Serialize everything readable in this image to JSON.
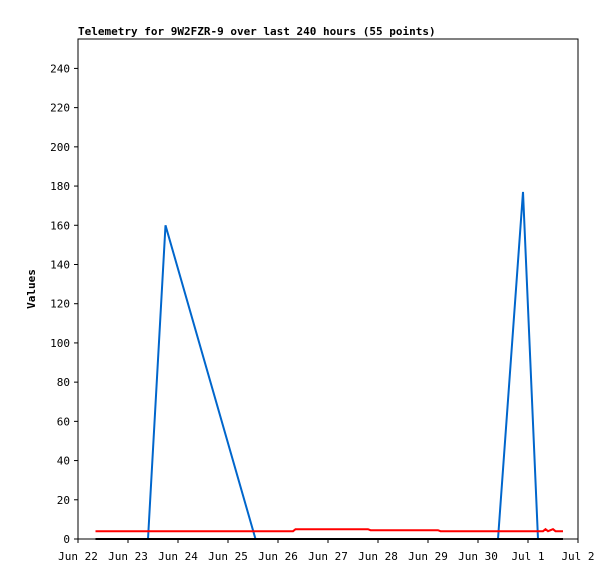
{
  "chart_data": {
    "type": "line",
    "title": "Telemetry for 9W2FZR-9 over last 240 hours (55 points)",
    "xlabel": "",
    "ylabel": "Values",
    "x_tick_labels": [
      "Jun 22",
      "Jun 23",
      "Jun 24",
      "Jun 25",
      "Jun 26",
      "Jun 27",
      "Jun 28",
      "Jun 29",
      "Jun 30",
      "Jul 1",
      "Jul 2"
    ],
    "xlim": [
      0,
      10
    ],
    "ylim": [
      0,
      255
    ],
    "y_ticks": [
      0,
      20,
      40,
      60,
      80,
      100,
      120,
      140,
      160,
      180,
      200,
      220,
      240
    ],
    "grid": false,
    "legend": "none",
    "series": [
      {
        "color": "#0066cc",
        "x": [
          0.35,
          1.4,
          1.75,
          3.55,
          3.6,
          8.4,
          8.9,
          9.2,
          9.35
        ],
        "y": [
          0,
          0,
          160,
          0,
          0,
          0,
          177,
          0,
          0
        ]
      },
      {
        "color": "#ff0000",
        "x": [
          0.35,
          4.3,
          4.35,
          5.8,
          5.85,
          7.2,
          7.25,
          9.3,
          9.35,
          9.4,
          9.5,
          9.55,
          9.7
        ],
        "y": [
          4,
          4,
          5,
          5,
          4.5,
          4.5,
          4,
          4,
          5,
          4,
          5,
          4,
          4
        ]
      },
      {
        "color": "#000000",
        "x": [
          0.35,
          9.7
        ],
        "y": [
          0,
          0
        ]
      }
    ]
  }
}
